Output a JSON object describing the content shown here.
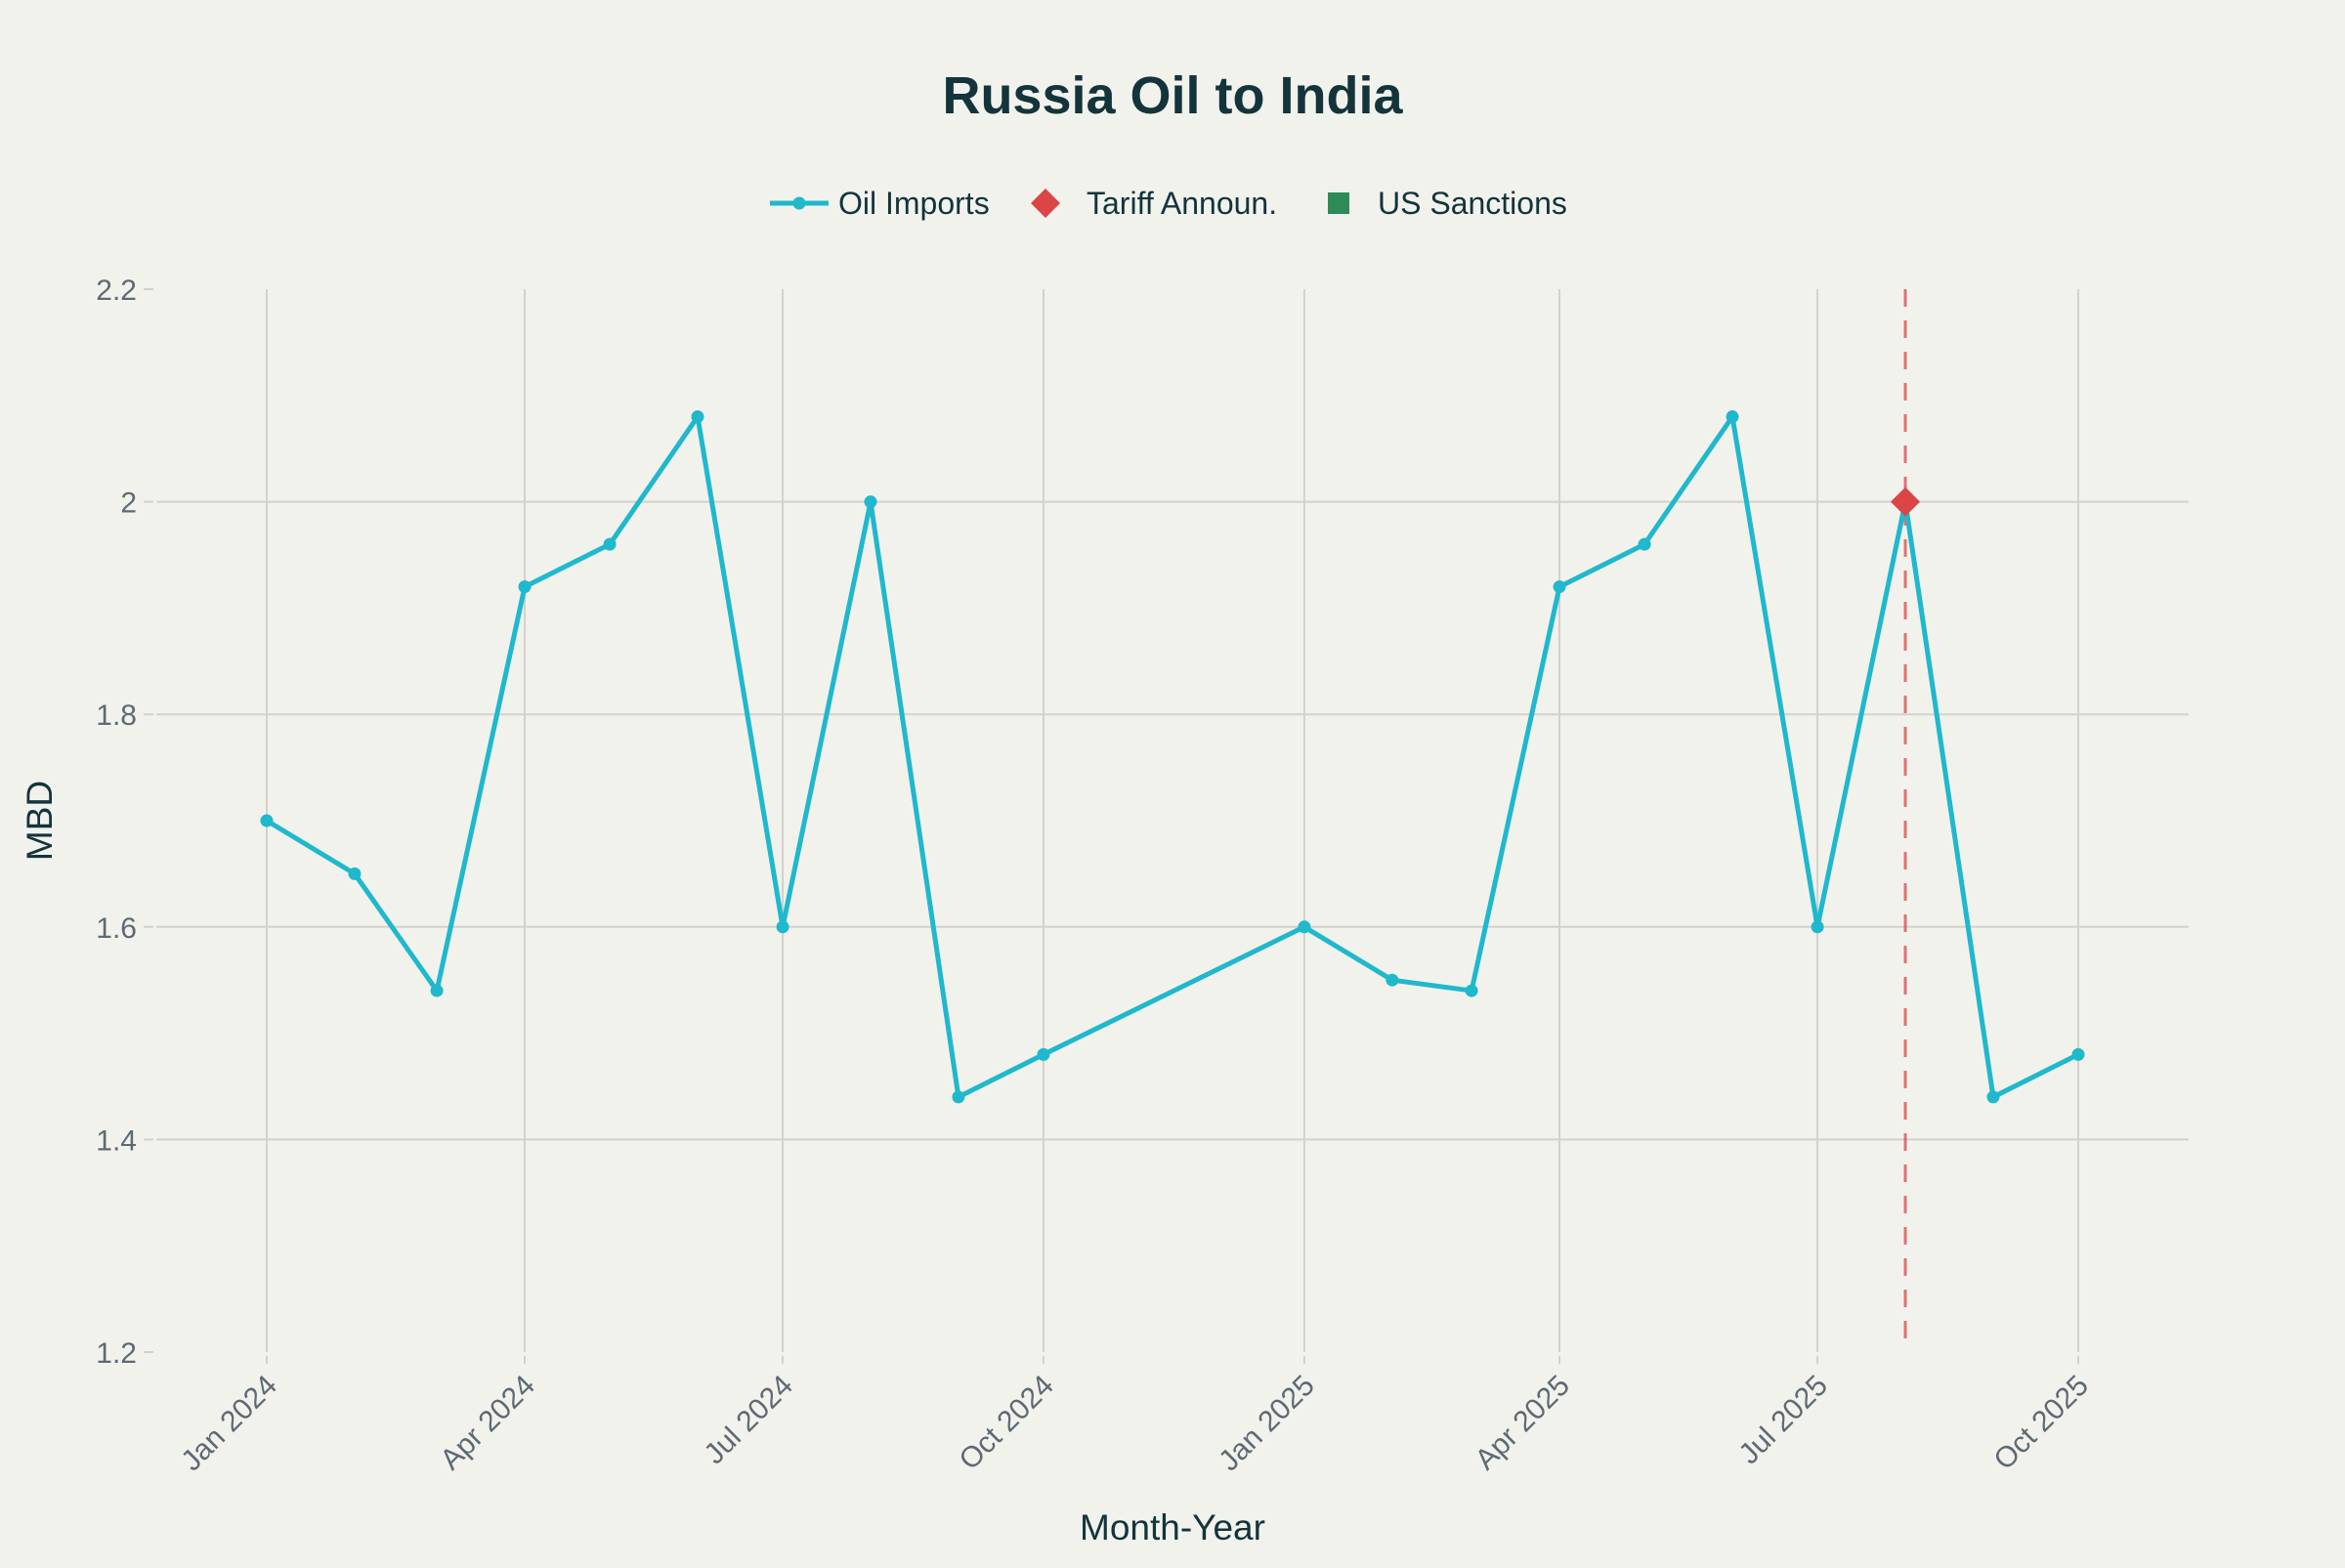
{
  "chart_data": {
    "type": "line",
    "title": "Russia Oil to India",
    "xlabel": "Month-Year",
    "ylabel": "MBD",
    "ylim": [
      1.2,
      2.2
    ],
    "yticks": [
      1.2,
      1.4,
      1.6,
      1.8,
      2.0,
      2.2
    ],
    "ytick_labels": [
      "1.2",
      "1.4",
      "1.6",
      "1.8",
      "2",
      "2.2"
    ],
    "xtick_labels": [
      "Jan 2024",
      "Apr 2024",
      "Jul 2024",
      "Oct 2024",
      "Jan 2025",
      "Apr 2025",
      "Jul 2025",
      "Oct 2025"
    ],
    "grid": true,
    "legend_position": "top-center-horizontal",
    "legend": [
      {
        "name": "Oil Imports",
        "symbol": "line-marker",
        "color": "#1fb8cd"
      },
      {
        "name": "Tariff Announ.",
        "symbol": "diamond",
        "color": "#db4545"
      },
      {
        "name": "US Sanctions",
        "symbol": "square",
        "color": "#2e8b57"
      }
    ],
    "series": [
      {
        "name": "Oil Imports",
        "color": "#1fb8cd",
        "x": [
          "2024-01",
          "2024-02",
          "2024-03",
          "2024-04",
          "2024-05",
          "2024-06",
          "2024-07",
          "2024-08",
          "2024-09",
          "2024-10",
          "2025-01",
          "2025-02",
          "2025-03",
          "2025-04",
          "2025-05",
          "2025-06",
          "2025-07",
          "2025-08",
          "2025-09",
          "2025-10"
        ],
        "values": [
          1.7,
          1.65,
          1.54,
          1.92,
          1.96,
          2.08,
          1.6,
          2.0,
          1.44,
          1.48,
          1.6,
          1.55,
          1.54,
          1.92,
          1.96,
          2.08,
          1.6,
          2.0,
          1.44,
          1.48
        ]
      },
      {
        "name": "Tariff Announ.",
        "color": "#db4545",
        "x": [
          "2025-08"
        ],
        "values": [
          2.0
        ]
      },
      {
        "name": "US Sanctions",
        "color": "#2e8b57",
        "x": [],
        "values": []
      }
    ],
    "annotations": [
      {
        "type": "vertical-dashed-line",
        "x": "2025-08",
        "color": "#db4545"
      }
    ]
  }
}
